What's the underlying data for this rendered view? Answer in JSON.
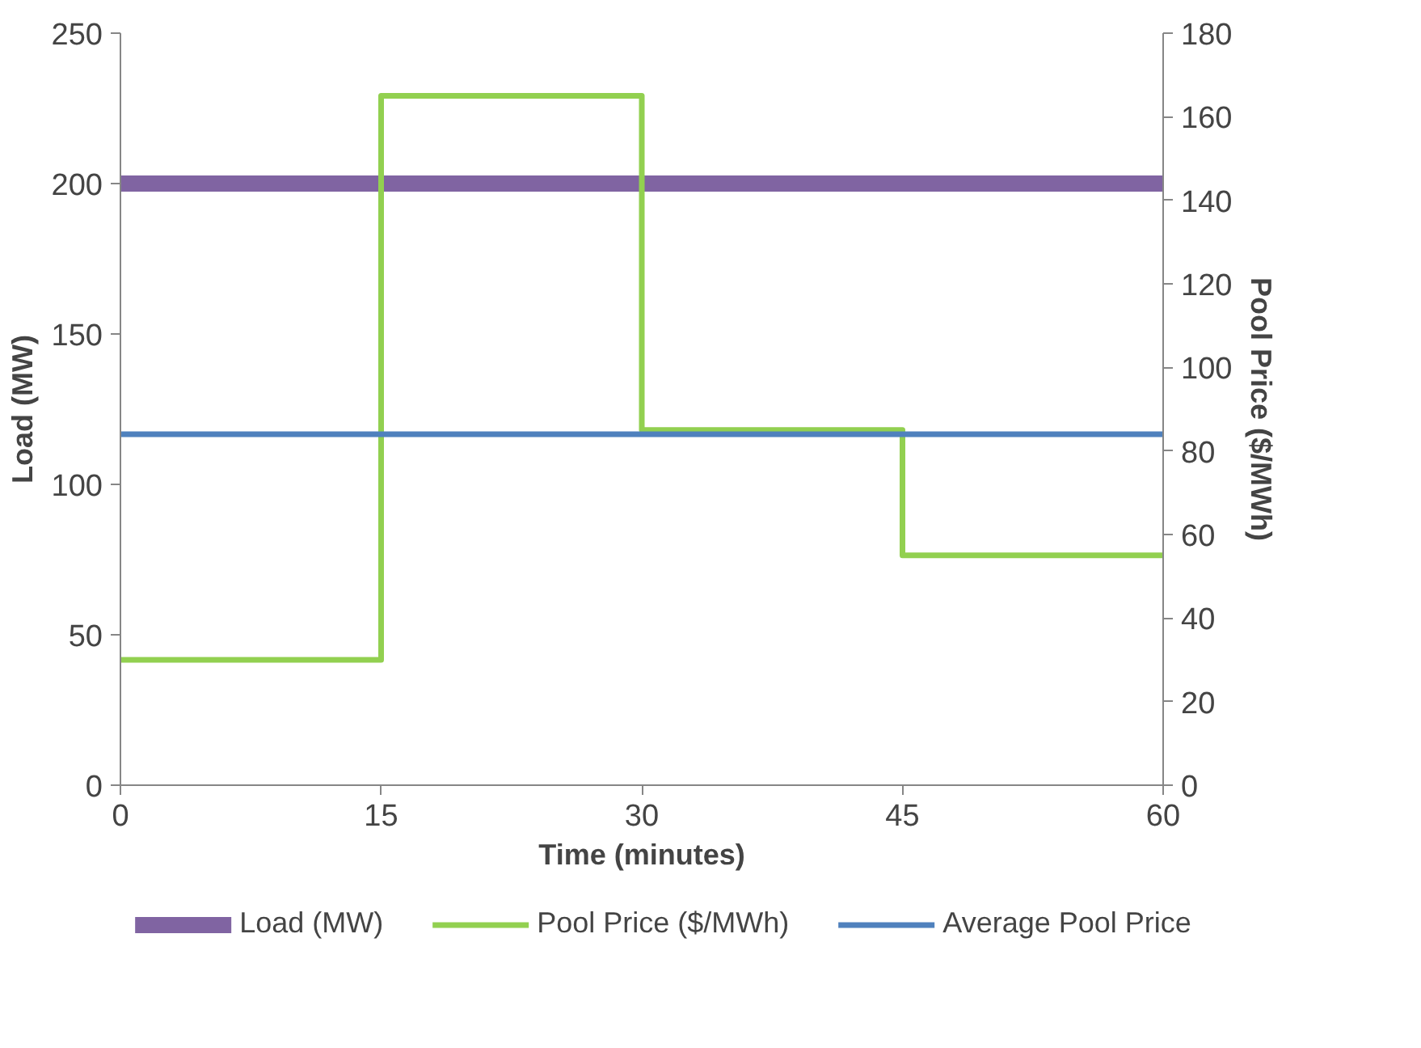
{
  "chart_data": {
    "type": "line",
    "xlabel": "Time (minutes)",
    "ylabel": "Load (MW)",
    "y2label": "Pool Price ($/MWh)",
    "xlim": [
      0,
      60
    ],
    "xticks": [
      0,
      15,
      30,
      45,
      60
    ],
    "ylim": [
      0,
      250
    ],
    "yticks": [
      0,
      50,
      100,
      150,
      200,
      250
    ],
    "y2lim": [
      0,
      180
    ],
    "y2ticks": [
      0,
      20,
      40,
      60,
      80,
      100,
      120,
      140,
      160,
      180
    ],
    "grid": false,
    "legend": "bottom",
    "marker": "none",
    "line_style": "solid",
    "series": [
      {
        "name": "Load (MW)",
        "color": "#8064a2",
        "x": [
          0,
          60
        ],
        "values": [
          200,
          200
        ]
      },
      {
        "name": "Pool Price ($/MWh)",
        "color": "#92d050",
        "type": "step",
        "axis": "y2",
        "x": [
          0,
          15,
          30,
          45,
          60
        ],
        "values": [
          30,
          165,
          85,
          55,
          55
        ]
      },
      {
        "name": "Average Pool Price",
        "color": "#4f81bd",
        "type": "line",
        "axis": "y2",
        "x": [
          0,
          60
        ],
        "values": [
          84,
          84
        ]
      }
    ]
  }
}
